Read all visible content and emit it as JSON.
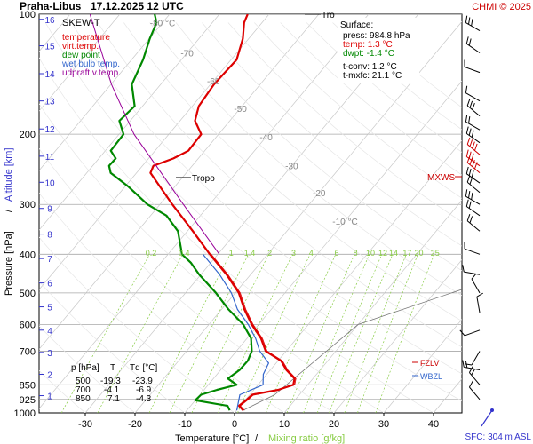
{
  "header": {
    "station": "Praha-Libus",
    "datetime": "17.12.2025 12 UTC",
    "credit": "CHMI © 2025"
  },
  "legend": {
    "title": "SKEW-T",
    "items": [
      {
        "label": "temperature",
        "color": "#dd0000"
      },
      {
        "label": "virt.temp.",
        "color": "#dd0000"
      },
      {
        "label": "dew point",
        "color": "#008800"
      },
      {
        "label": "wet bulb temp.",
        "color": "#3366cc"
      },
      {
        "label": "udpraft v.temp.",
        "color": "#990099"
      }
    ]
  },
  "surface_box": {
    "title": "Surface:",
    "press": "press: 984.8 hPa",
    "temp": "temp: 1.3 °C",
    "dwpt": "dwpt: -1.4 °C",
    "tconv": "t-conv: 1.2 °C",
    "tmxfc": "t-mxfc: 21.1 °C",
    "temp_color": "#dd0000",
    "dwpt_color": "#008800"
  },
  "data_table": {
    "headers": [
      "p [hPa]",
      "T",
      "Td [°C]"
    ],
    "rows": [
      [
        "500",
        "-19.3",
        "-23.9"
      ],
      [
        "700",
        "-4.1",
        "-6.9"
      ],
      [
        "850",
        "7.1",
        "-4.3"
      ]
    ]
  },
  "markers": {
    "tropo": "Tropo",
    "tro": "Tro",
    "mxws": "MXWS",
    "fzlv": "FZLV",
    "wbzl": "WBZL",
    "sfc": "SFC: 304 m ASL"
  },
  "colors": {
    "temperature": "#dd0000",
    "dewpoint": "#008800",
    "wetbulb": "#3366cc",
    "parcel": "#990099",
    "axis_blue": "#3333cc",
    "mixing": "#88cc44",
    "credit": "#cc0000"
  },
  "chart_data": {
    "type": "line",
    "xlabel": "Temperature [°C]",
    "xlabel_sep": "/",
    "xlabel2": "Mixing ratio [g/kg]",
    "ylabel": "Pressure [hPa]",
    "ylabel_sep": "/",
    "ylabel2": "Altitude [km]",
    "xlim": [
      -35,
      45
    ],
    "ylim": [
      1000,
      100
    ],
    "y_scale": "log",
    "x_ticks": [
      -30,
      -20,
      -10,
      0,
      10,
      20,
      30,
      40
    ],
    "pressure_ticks": [
      100,
      200,
      300,
      400,
      500,
      600,
      700,
      850,
      925,
      1000
    ],
    "altitude_ticks": [
      {
        "label": "1",
        "p": 905
      },
      {
        "label": "2",
        "p": 800
      },
      {
        "label": "3",
        "p": 705
      },
      {
        "label": "4",
        "p": 620
      },
      {
        "label": "5",
        "p": 542
      },
      {
        "label": "6",
        "p": 472
      },
      {
        "label": "7",
        "p": 410
      },
      {
        "label": "8",
        "p": 356
      },
      {
        "label": "9",
        "p": 307
      },
      {
        "label": "10",
        "p": 264
      },
      {
        "label": "11",
        "p": 227
      },
      {
        "label": "12",
        "p": 194
      },
      {
        "label": "13",
        "p": 165
      },
      {
        "label": "14",
        "p": 141
      },
      {
        "label": "15",
        "p": 120
      },
      {
        "label": "16",
        "p": 103
      }
    ],
    "isotherm_labels": [
      {
        "label": "-80 °C",
        "t": -80,
        "p": 105
      },
      {
        "label": "-70",
        "t": -70,
        "p": 125
      },
      {
        "label": "-60",
        "t": -60,
        "p": 147
      },
      {
        "label": "-50",
        "t": -50,
        "p": 172
      },
      {
        "label": "-40",
        "t": -40,
        "p": 203
      },
      {
        "label": "-30",
        "t": -30,
        "p": 240
      },
      {
        "label": "-20",
        "t": -20,
        "p": 280
      },
      {
        "label": "-10 °C",
        "t": -10,
        "p": 330
      }
    ],
    "mixing_ratio_labels": [
      "0.2",
      "0.4",
      "1",
      "1.4",
      "2",
      "3",
      "4",
      "6",
      "8",
      "10",
      "12",
      "14",
      "17",
      "20",
      "25"
    ],
    "mixing_ratio_values": [
      0.2,
      0.4,
      1,
      1.4,
      2,
      3,
      4,
      6,
      8,
      10,
      12,
      14,
      17,
      20,
      25
    ],
    "series": [
      {
        "name": "temperature",
        "points": [
          [
            985,
            1.3
          ],
          [
            960,
            -0.3
          ],
          [
            930,
            0.2
          ],
          [
            900,
            0.5
          ],
          [
            875,
            4.9
          ],
          [
            850,
            7.1
          ],
          [
            820,
            6.3
          ],
          [
            780,
            3.2
          ],
          [
            740,
            0.6
          ],
          [
            700,
            -4.1
          ],
          [
            650,
            -7.2
          ],
          [
            600,
            -11.4
          ],
          [
            550,
            -15.4
          ],
          [
            500,
            -19.3
          ],
          [
            450,
            -24.8
          ],
          [
            400,
            -31.6
          ],
          [
            350,
            -38.9
          ],
          [
            300,
            -47.5
          ],
          [
            270,
            -53.1
          ],
          [
            250,
            -57.2
          ],
          [
            240,
            -57.8
          ],
          [
            230,
            -55.0
          ],
          [
            220,
            -53.3
          ],
          [
            200,
            -53.5
          ],
          [
            185,
            -57.0
          ],
          [
            170,
            -58.7
          ],
          [
            150,
            -59.3
          ],
          [
            130,
            -58.9
          ],
          [
            115,
            -61.2
          ],
          [
            105,
            -63.6
          ],
          [
            100,
            -64.3
          ]
        ]
      },
      {
        "name": "dew point",
        "points": [
          [
            985,
            -1.4
          ],
          [
            960,
            -2.6
          ],
          [
            930,
            -10.0
          ],
          [
            900,
            -9.8
          ],
          [
            875,
            -7.4
          ],
          [
            850,
            -4.3
          ],
          [
            820,
            -7.1
          ],
          [
            780,
            -6.2
          ],
          [
            740,
            -6.1
          ],
          [
            700,
            -6.9
          ],
          [
            650,
            -9.2
          ],
          [
            600,
            -13.1
          ],
          [
            550,
            -18.6
          ],
          [
            500,
            -23.9
          ],
          [
            450,
            -30.3
          ],
          [
            420,
            -34.0
          ],
          [
            400,
            -37.2
          ],
          [
            350,
            -41.9
          ],
          [
            320,
            -46.8
          ],
          [
            300,
            -52.5
          ],
          [
            270,
            -59.5
          ],
          [
            250,
            -65.2
          ],
          [
            240,
            -66.7
          ],
          [
            230,
            -66.6
          ],
          [
            220,
            -68.9
          ],
          [
            200,
            -69.1
          ],
          [
            185,
            -72.2
          ],
          [
            170,
            -71.6
          ],
          [
            150,
            -75.8
          ],
          [
            130,
            -77.7
          ],
          [
            115,
            -79.9
          ],
          [
            105,
            -81.2
          ],
          [
            100,
            -83.0
          ]
        ]
      },
      {
        "name": "wet bulb temp.",
        "points": [
          [
            985,
            0.0
          ],
          [
            900,
            -2.0
          ],
          [
            850,
            1.0
          ],
          [
            800,
            -0.7
          ],
          [
            750,
            -1.5
          ],
          [
            700,
            -5.3
          ],
          [
            650,
            -8.3
          ],
          [
            600,
            -12.1
          ],
          [
            550,
            -16.8
          ],
          [
            500,
            -20.8
          ],
          [
            450,
            -26.2
          ],
          [
            400,
            -33.0
          ]
        ]
      },
      {
        "name": "udpraft v.temp.",
        "points": [
          [
            400,
            -29.7
          ],
          [
            300,
            -45.3
          ],
          [
            200,
            -67.0
          ],
          [
            150,
            -79.9
          ],
          [
            100,
            -96.0
          ]
        ]
      }
    ]
  }
}
